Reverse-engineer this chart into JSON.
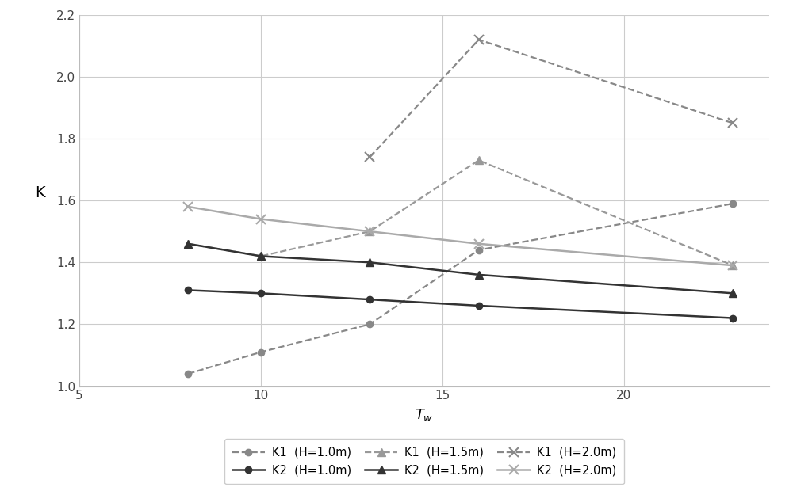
{
  "tw_values": [
    8,
    10,
    13,
    16,
    23
  ],
  "series": [
    {
      "label": "K1  (H=1.0m)",
      "y": [
        1.04,
        1.11,
        1.2,
        1.44,
        1.59
      ],
      "color": "#888888",
      "linestyle": "dashed",
      "marker": "o",
      "marker_size": 6,
      "linewidth": 1.6,
      "zorder": 3,
      "legend_order": 0
    },
    {
      "label": "K2  (H=1.0m)",
      "y": [
        1.31,
        1.3,
        1.28,
        1.26,
        1.22
      ],
      "color": "#333333",
      "linestyle": "solid",
      "marker": "o",
      "marker_size": 6,
      "linewidth": 1.8,
      "zorder": 3,
      "legend_order": 3
    },
    {
      "label": "K1  (H=1.5m)",
      "y": [
        1.46,
        1.42,
        1.5,
        1.73,
        1.39
      ],
      "color": "#999999",
      "linestyle": "dashed",
      "marker": "^",
      "marker_size": 7,
      "linewidth": 1.6,
      "zorder": 3,
      "legend_order": 1
    },
    {
      "label": "K2  (H=1.5m)",
      "y": [
        1.46,
        1.42,
        1.4,
        1.36,
        1.3
      ],
      "color": "#333333",
      "linestyle": "solid",
      "marker": "^",
      "marker_size": 7,
      "linewidth": 1.8,
      "zorder": 3,
      "legend_order": 4
    },
    {
      "label": "K1  (H=2.0m)",
      "y": [
        null,
        null,
        1.74,
        2.12,
        1.85
      ],
      "color": "#888888",
      "linestyle": "dashed",
      "marker": "x",
      "marker_size": 9,
      "linewidth": 1.6,
      "zorder": 3,
      "legend_order": 2
    },
    {
      "label": "K2  (H=2.0m)",
      "y": [
        1.58,
        1.54,
        1.5,
        1.46,
        1.39
      ],
      "color": "#aaaaaa",
      "linestyle": "solid",
      "marker": "x",
      "marker_size": 9,
      "linewidth": 1.8,
      "zorder": 3,
      "legend_order": 5
    }
  ],
  "xlabel": "T",
  "xlabel_sub": "w",
  "ylabel": "K",
  "xlim": [
    5,
    24
  ],
  "ylim": [
    1.0,
    2.2
  ],
  "xticks": [
    5,
    10,
    15,
    20
  ],
  "yticks": [
    1.0,
    1.2,
    1.4,
    1.6,
    1.8,
    2.0,
    2.2
  ],
  "grid_color": "#cccccc",
  "background_color": "#ffffff",
  "legend_ncol": 3,
  "legend_fontsize": 10.5
}
